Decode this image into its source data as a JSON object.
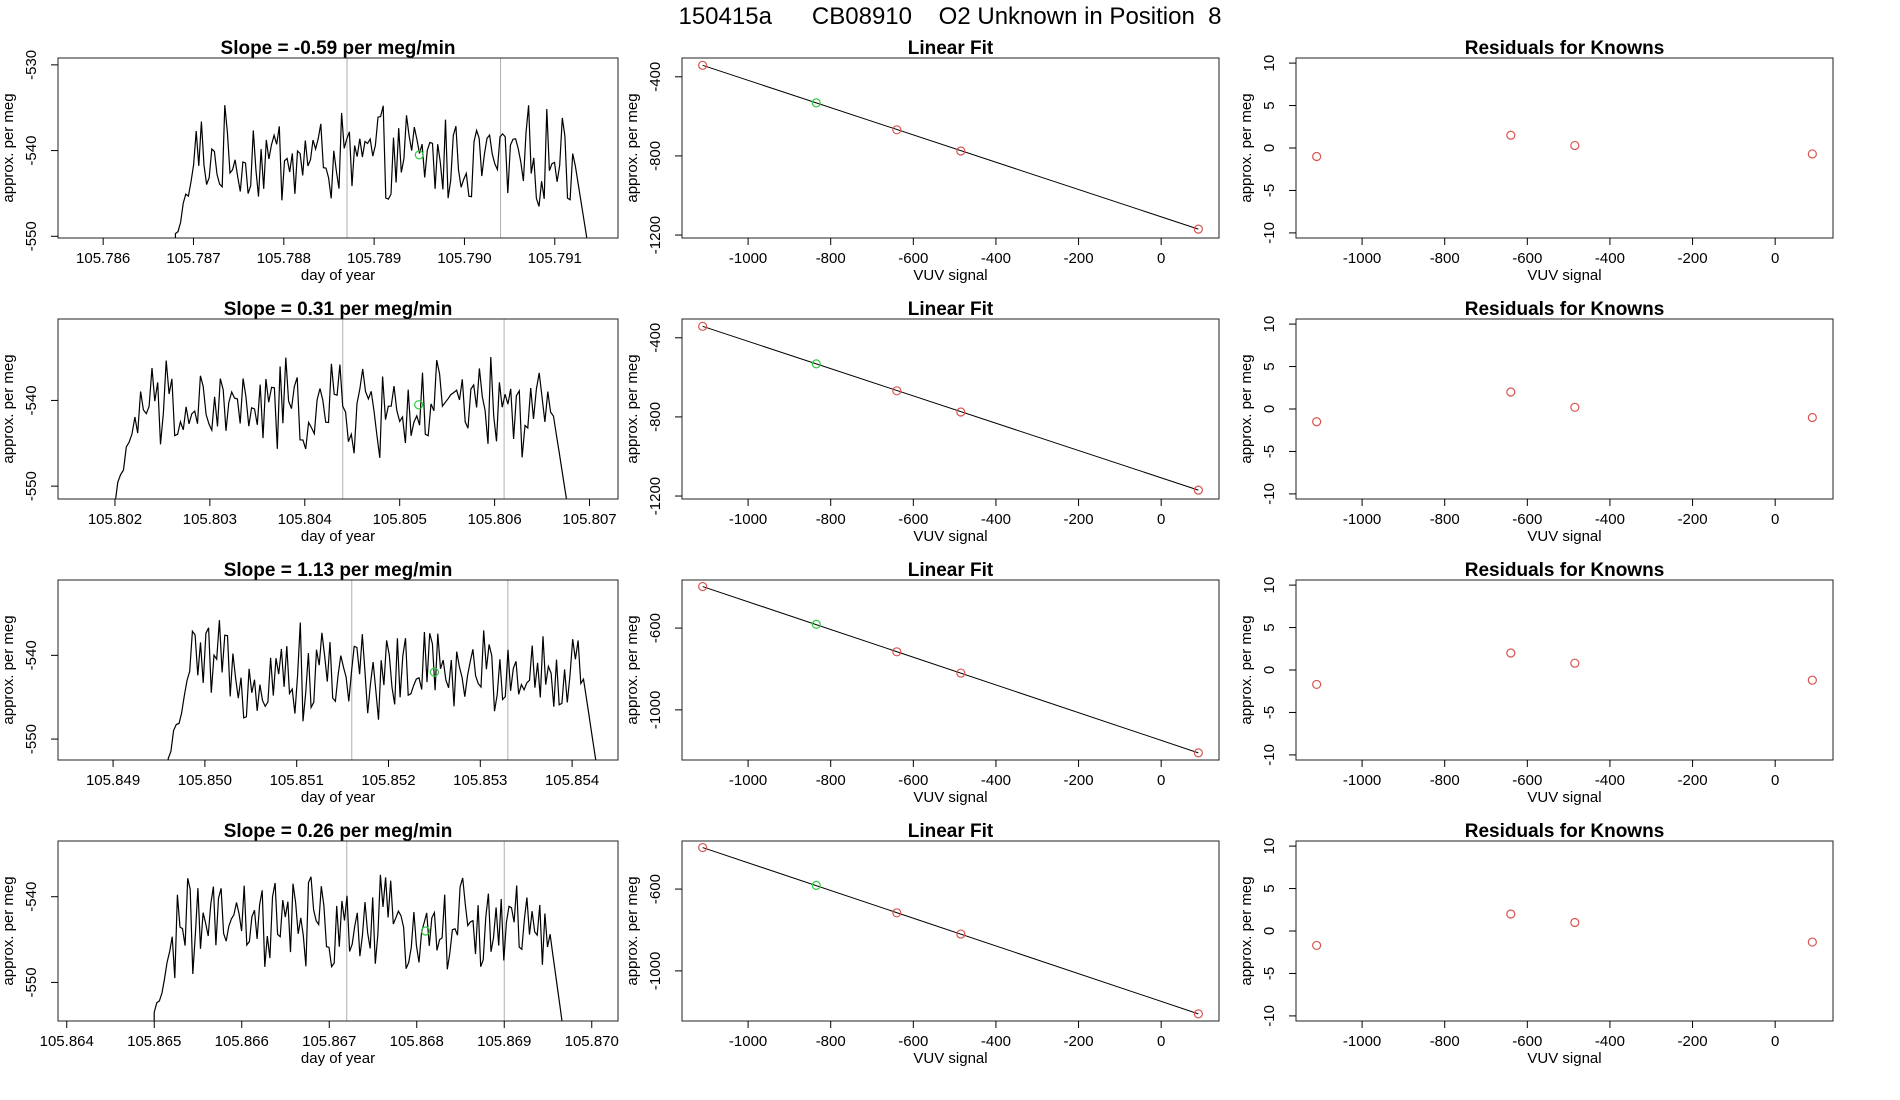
{
  "header": {
    "title": "150415a      CB08910    O2 Unknown in Position  8"
  },
  "colors": {
    "axis": "#000000",
    "box": "#222222",
    "trace": "#000000",
    "vline": "#b0b0b0",
    "known_point": "#d9534f",
    "unknown_point": "#2ecc40",
    "fit_line": "#000000"
  },
  "chart_data": [
    {
      "type": "line",
      "panel": "time",
      "row": 0,
      "title": "Slope =  -0.59  per meg/min",
      "xlabel": "day of year",
      "ylabel": "approx. per meg",
      "xlim": [
        105.7855,
        105.7917
      ],
      "ylim": [
        -550.2,
        -529.2
      ],
      "xticks": [
        "105.786",
        "105.787",
        "105.788",
        "105.789",
        "105.790",
        "105.791"
      ],
      "yticks": [
        "-550",
        "-540",
        "-530"
      ],
      "trace_start": 105.7868,
      "trace_end": 105.7914,
      "mean": -541,
      "vlines": [
        105.7887,
        105.7904
      ],
      "unknown_point": {
        "x": 105.7895,
        "y": -540.5
      }
    },
    {
      "type": "line",
      "panel": "time",
      "row": 1,
      "title": "Slope =  0.31  per meg/min",
      "xlabel": "day of year",
      "ylabel": "approx. per meg",
      "xlim": [
        105.8014,
        105.8073
      ],
      "ylim": [
        -551.5,
        -530.5
      ],
      "xticks": [
        "105.802",
        "105.803",
        "105.804",
        "105.805",
        "105.806",
        "105.807"
      ],
      "yticks": [
        "-550",
        "-540"
      ],
      "trace_start": 105.802,
      "trace_end": 105.8068,
      "mean": -541,
      "vlines": [
        105.8044,
        105.8061
      ],
      "unknown_point": {
        "x": 105.8052,
        "y": -540.5
      }
    },
    {
      "type": "line",
      "panel": "time",
      "row": 2,
      "title": "Slope =  1.13  per meg/min",
      "xlabel": "day of year",
      "ylabel": "approx. per meg",
      "xlim": [
        105.8484,
        105.8545
      ],
      "ylim": [
        -552.5,
        -531
      ],
      "xticks": [
        "105.849",
        "105.850",
        "105.851",
        "105.852",
        "105.853",
        "105.854"
      ],
      "yticks": [
        "-550",
        "-540"
      ],
      "trace_start": 105.8496,
      "trace_end": 105.8543,
      "mean": -542,
      "vlines": [
        105.8516,
        105.8533
      ],
      "unknown_point": {
        "x": 105.8525,
        "y": -542
      }
    },
    {
      "type": "line",
      "panel": "time",
      "row": 3,
      "title": "Slope =  0.26  per meg/min",
      "xlabel": "day of year",
      "ylabel": "approx. per meg",
      "xlim": [
        105.8639,
        105.8703
      ],
      "ylim": [
        -554.5,
        -533.5
      ],
      "xticks": [
        "105.864",
        "105.865",
        "105.866",
        "105.867",
        "105.868",
        "105.869",
        "105.870"
      ],
      "yticks": [
        "-550",
        "-540"
      ],
      "trace_start": 105.865,
      "trace_end": 105.8697,
      "mean": -543.5,
      "vlines": [
        105.8672,
        105.869
      ],
      "unknown_point": {
        "x": 105.8681,
        "y": -544
      }
    },
    {
      "type": "scatter",
      "panel": "fit",
      "row": 0,
      "title": "Linear Fit",
      "xlabel": "VUV signal",
      "ylabel": "approx. per meg",
      "xlim": [
        -1160,
        140
      ],
      "ylim": [
        -1215,
        -305
      ],
      "xticks": [
        "-1000",
        "-800",
        "-600",
        "-400",
        "-200",
        "0"
      ],
      "yticks": [
        "-1200",
        "-800",
        "-400"
      ],
      "line": [
        [
          -1110,
          -342
        ],
        [
          90,
          -1170
        ]
      ],
      "points": [
        {
          "x": -1110,
          "y": -342,
          "kind": "known"
        },
        {
          "x": -835,
          "y": -532,
          "kind": "unknown"
        },
        {
          "x": -640,
          "y": -668,
          "kind": "known"
        },
        {
          "x": -485,
          "y": -775,
          "kind": "known"
        },
        {
          "x": 90,
          "y": -1170,
          "kind": "known"
        }
      ]
    },
    {
      "type": "scatter",
      "panel": "fit",
      "row": 1,
      "title": "Linear Fit",
      "xlabel": "VUV signal",
      "ylabel": "approx. per meg",
      "xlim": [
        -1160,
        140
      ],
      "ylim": [
        -1215,
        -305
      ],
      "xticks": [
        "-1000",
        "-800",
        "-600",
        "-400",
        "-200",
        "0"
      ],
      "yticks": [
        "-1200",
        "-800",
        "-400"
      ],
      "line": [
        [
          -1110,
          -342
        ],
        [
          90,
          -1170
        ]
      ],
      "points": [
        {
          "x": -1110,
          "y": -342,
          "kind": "known"
        },
        {
          "x": -835,
          "y": -532,
          "kind": "unknown"
        },
        {
          "x": -640,
          "y": -668,
          "kind": "known"
        },
        {
          "x": -485,
          "y": -775,
          "kind": "known"
        },
        {
          "x": 90,
          "y": -1170,
          "kind": "known"
        }
      ]
    },
    {
      "type": "scatter",
      "panel": "fit",
      "row": 2,
      "title": "Linear Fit",
      "xlabel": "VUV signal",
      "ylabel": "approx. per meg",
      "xlim": [
        -1160,
        140
      ],
      "ylim": [
        -1245,
        -365
      ],
      "xticks": [
        "-1000",
        "-800",
        "-600",
        "-400",
        "-200",
        "0"
      ],
      "yticks": [
        "-1000",
        "-600"
      ],
      "line": [
        [
          -1110,
          -397
        ],
        [
          90,
          -1210
        ]
      ],
      "points": [
        {
          "x": -1110,
          "y": -397,
          "kind": "known"
        },
        {
          "x": -835,
          "y": -582,
          "kind": "unknown"
        },
        {
          "x": -640,
          "y": -716,
          "kind": "known"
        },
        {
          "x": -485,
          "y": -820,
          "kind": "known"
        },
        {
          "x": 90,
          "y": -1210,
          "kind": "known"
        }
      ]
    },
    {
      "type": "scatter",
      "panel": "fit",
      "row": 3,
      "title": "Linear Fit",
      "xlabel": "VUV signal",
      "ylabel": "approx. per meg",
      "xlim": [
        -1160,
        140
      ],
      "ylim": [
        -1245,
        -365
      ],
      "xticks": [
        "-1000",
        "-800",
        "-600",
        "-400",
        "-200",
        "0"
      ],
      "yticks": [
        "-1000",
        "-600"
      ],
      "line": [
        [
          -1110,
          -397
        ],
        [
          90,
          -1210
        ]
      ],
      "points": [
        {
          "x": -1110,
          "y": -397,
          "kind": "known"
        },
        {
          "x": -835,
          "y": -582,
          "kind": "unknown"
        },
        {
          "x": -640,
          "y": -716,
          "kind": "known"
        },
        {
          "x": -485,
          "y": -820,
          "kind": "known"
        },
        {
          "x": 90,
          "y": -1210,
          "kind": "known"
        }
      ]
    },
    {
      "type": "scatter",
      "panel": "resid",
      "row": 0,
      "title": "Residuals for Knowns",
      "xlabel": "VUV signal",
      "ylabel": "approx. per meg",
      "xlim": [
        -1160,
        140
      ],
      "ylim": [
        -10.6,
        10.6
      ],
      "xticks": [
        "-1000",
        "-800",
        "-600",
        "-400",
        "-200",
        "0"
      ],
      "yticks": [
        "-10",
        "-5",
        "0",
        "5",
        "10"
      ],
      "points": [
        {
          "x": -1110,
          "y": -1.0
        },
        {
          "x": -640,
          "y": 1.5
        },
        {
          "x": -485,
          "y": 0.3
        },
        {
          "x": 90,
          "y": -0.7
        }
      ]
    },
    {
      "type": "scatter",
      "panel": "resid",
      "row": 1,
      "title": "Residuals for Knowns",
      "xlabel": "VUV signal",
      "ylabel": "approx. per meg",
      "xlim": [
        -1160,
        140
      ],
      "ylim": [
        -10.6,
        10.6
      ],
      "xticks": [
        "-1000",
        "-800",
        "-600",
        "-400",
        "-200",
        "0"
      ],
      "yticks": [
        "-10",
        "-5",
        "0",
        "5",
        "10"
      ],
      "points": [
        {
          "x": -1110,
          "y": -1.5
        },
        {
          "x": -640,
          "y": 2.0
        },
        {
          "x": -485,
          "y": 0.2
        },
        {
          "x": 90,
          "y": -1.0
        }
      ]
    },
    {
      "type": "scatter",
      "panel": "resid",
      "row": 2,
      "title": "Residuals for Knowns",
      "xlabel": "VUV signal",
      "ylabel": "approx. per meg",
      "xlim": [
        -1160,
        140
      ],
      "ylim": [
        -10.6,
        10.6
      ],
      "xticks": [
        "-1000",
        "-800",
        "-600",
        "-400",
        "-200",
        "0"
      ],
      "yticks": [
        "-10",
        "-5",
        "0",
        "5",
        "10"
      ],
      "points": [
        {
          "x": -1110,
          "y": -1.7
        },
        {
          "x": -640,
          "y": 2.0
        },
        {
          "x": -485,
          "y": 0.8
        },
        {
          "x": 90,
          "y": -1.2
        }
      ]
    },
    {
      "type": "scatter",
      "panel": "resid",
      "row": 3,
      "title": "Residuals for Knowns",
      "xlabel": "VUV signal",
      "ylabel": "approx. per meg",
      "xlim": [
        -1160,
        140
      ],
      "ylim": [
        -10.6,
        10.6
      ],
      "xticks": [
        "-1000",
        "-800",
        "-600",
        "-400",
        "-200",
        "0"
      ],
      "yticks": [
        "-10",
        "-5",
        "0",
        "5",
        "10"
      ],
      "points": [
        {
          "x": -1110,
          "y": -1.7
        },
        {
          "x": -640,
          "y": 2.0
        },
        {
          "x": -485,
          "y": 1.0
        },
        {
          "x": 90,
          "y": -1.3
        }
      ]
    }
  ]
}
